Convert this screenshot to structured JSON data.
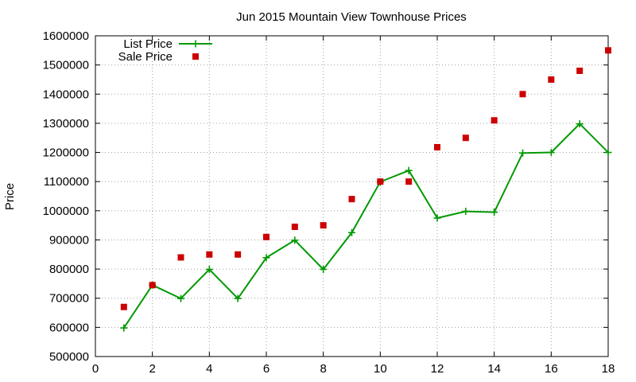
{
  "chart_data": {
    "type": "line",
    "title": "Jun 2015 Mountain View Townhouse Prices",
    "xlabel": "",
    "ylabel": "Price",
    "xlim": [
      0,
      18
    ],
    "ylim": [
      500000,
      1600000
    ],
    "x_ticks": [
      0,
      2,
      4,
      6,
      8,
      10,
      12,
      14,
      16,
      18
    ],
    "y_ticks": [
      500000,
      600000,
      700000,
      800000,
      900000,
      1000000,
      1100000,
      1200000,
      1300000,
      1400000,
      1500000,
      1600000
    ],
    "grid": true,
    "legend_position": "top-left",
    "series": [
      {
        "name": "List Price",
        "style": "line-with-plus-markers",
        "color": "#009900",
        "x": [
          1,
          2,
          3,
          4,
          5,
          6,
          7,
          8,
          9,
          10,
          11,
          12,
          13,
          14,
          15,
          16,
          17,
          18
        ],
        "values": [
          598000,
          745000,
          699000,
          799000,
          699000,
          839000,
          899000,
          799000,
          925000,
          1099000,
          1138000,
          975000,
          998000,
          995000,
          1198000,
          1200000,
          1298000,
          1200000
        ]
      },
      {
        "name": "Sale Price",
        "style": "square-markers",
        "color": "#cc0000",
        "x": [
          1,
          2,
          3,
          4,
          5,
          6,
          7,
          8,
          9,
          10,
          11,
          12,
          13,
          14,
          15,
          16,
          17,
          18
        ],
        "values": [
          670000,
          745000,
          840000,
          850000,
          850000,
          910000,
          945000,
          950000,
          1040000,
          1100000,
          1100000,
          1218000,
          1250000,
          1310000,
          1400000,
          1450000,
          1480000,
          1550000
        ]
      }
    ]
  }
}
